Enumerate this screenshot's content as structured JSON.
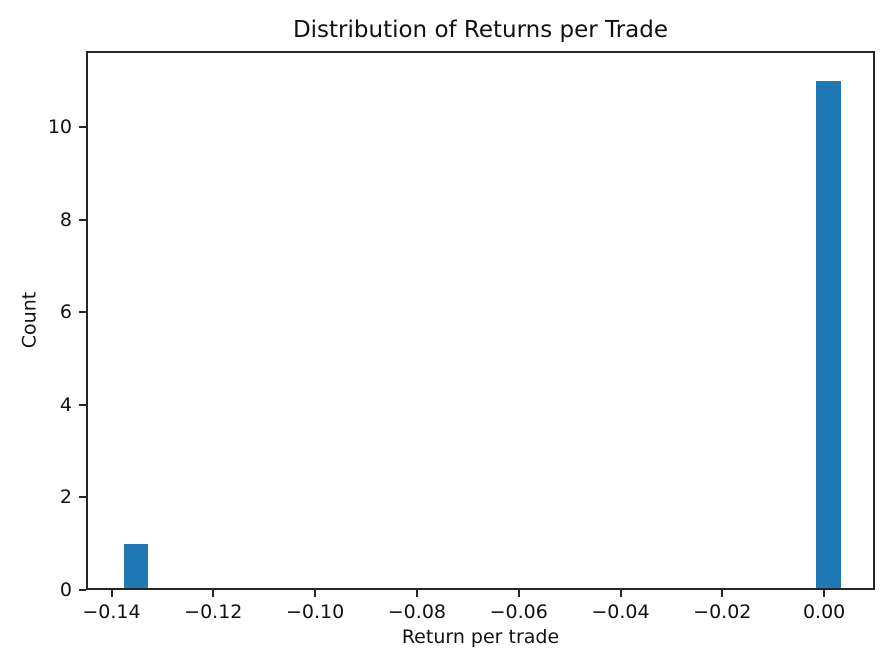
{
  "chart_data": {
    "type": "histogram",
    "title": "Distribution of Returns per Trade",
    "xlabel": "Return per trade",
    "ylabel": "Count",
    "bar_color": "#1f77b4",
    "axis_color": "#262626",
    "background_color": "#ffffff",
    "grid": false,
    "legend": null,
    "xlim": [
      -0.145,
      0.01
    ],
    "ylim": [
      0,
      11.64
    ],
    "xticks": [
      {
        "v": -0.14,
        "label": "−0.14"
      },
      {
        "v": -0.12,
        "label": "−0.12"
      },
      {
        "v": -0.1,
        "label": "−0.10"
      },
      {
        "v": -0.08,
        "label": "−0.08"
      },
      {
        "v": -0.06,
        "label": "−0.06"
      },
      {
        "v": -0.04,
        "label": "−0.04"
      },
      {
        "v": -0.02,
        "label": "−0.02"
      },
      {
        "v": 0.0,
        "label": "0.00"
      }
    ],
    "yticks": [
      {
        "v": 0,
        "label": "0"
      },
      {
        "v": 2,
        "label": "2"
      },
      {
        "v": 4,
        "label": "4"
      },
      {
        "v": 6,
        "label": "6"
      },
      {
        "v": 8,
        "label": "8"
      },
      {
        "v": 10,
        "label": "10"
      }
    ],
    "bars": [
      {
        "x0": -0.1375,
        "x1": -0.1328,
        "count": 1
      },
      {
        "x0": -0.0016,
        "x1": 0.0033,
        "count": 11
      }
    ]
  }
}
